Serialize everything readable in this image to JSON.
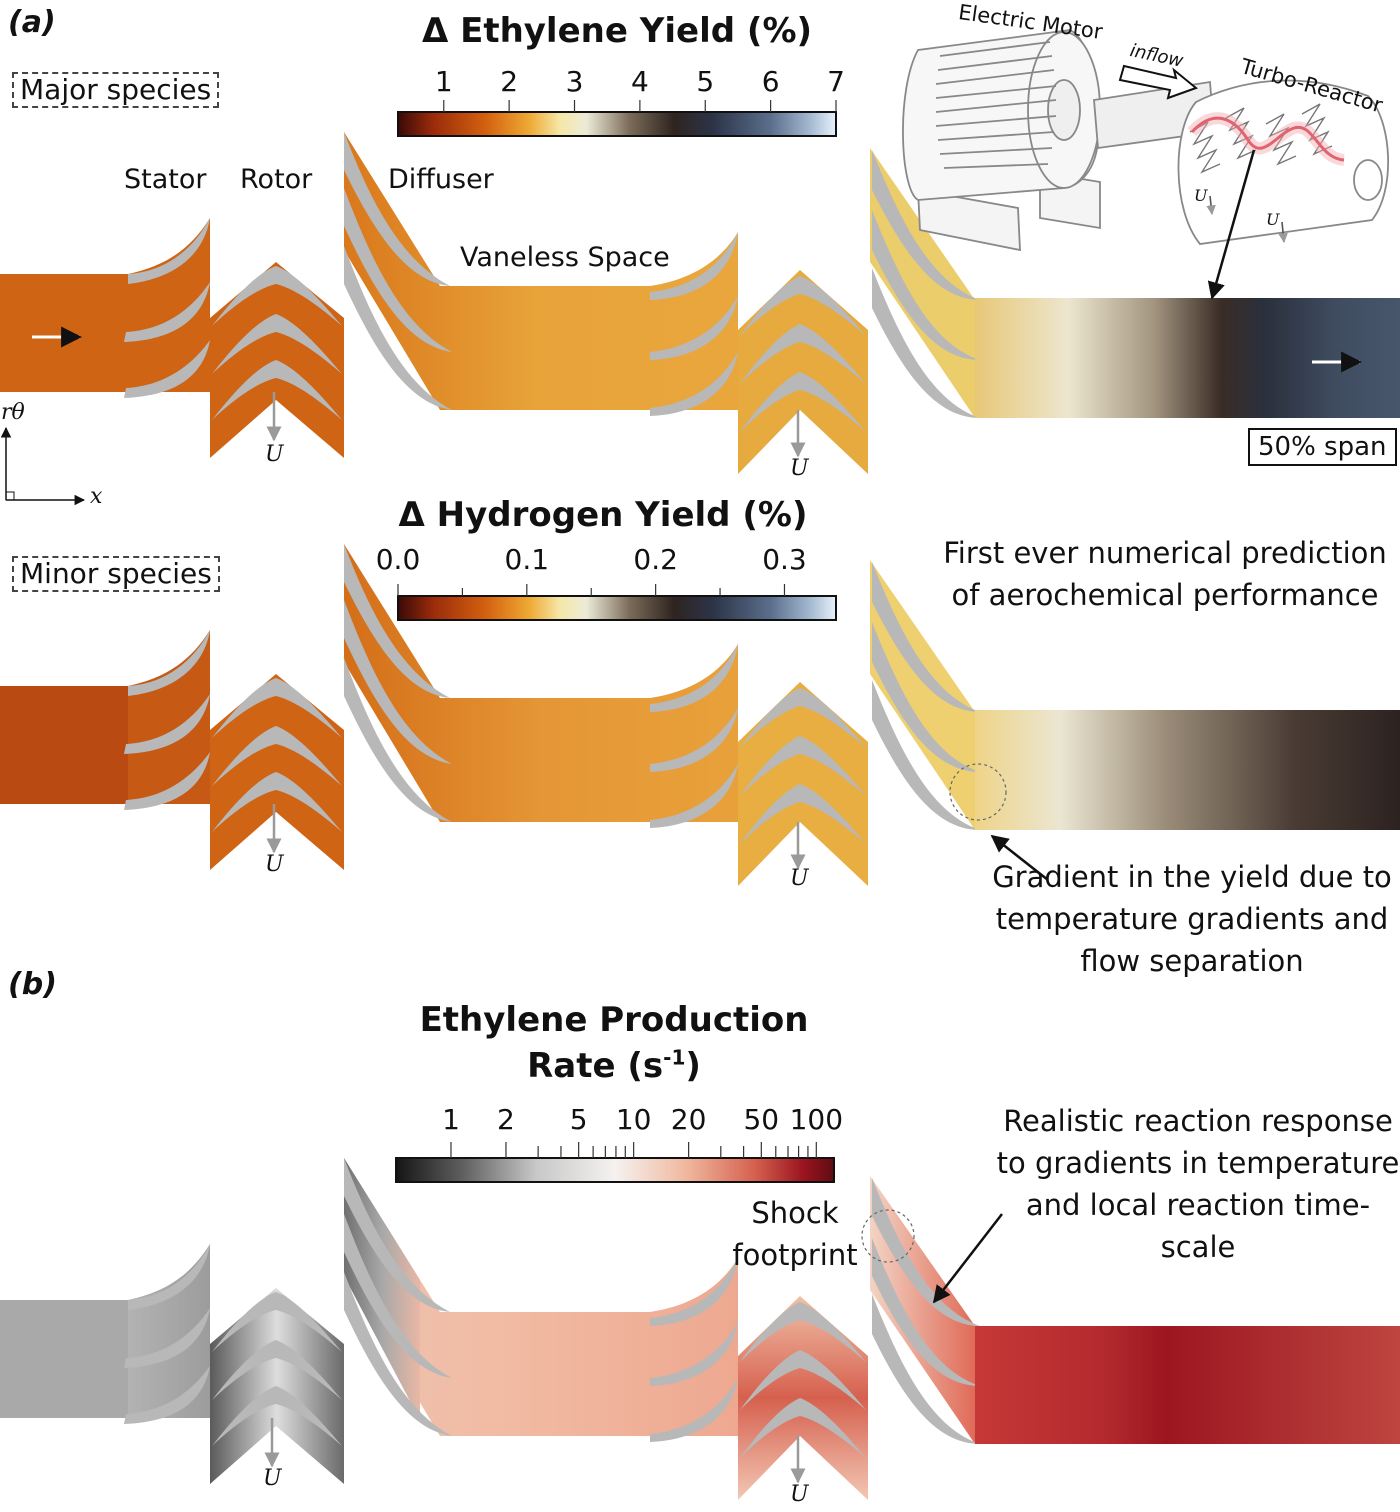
{
  "panel_a": {
    "letter": "a",
    "ethylene_colorbar": {
      "title": "Δ Ethylene Yield (%)",
      "ticks": [
        "1",
        "2",
        "3",
        "4",
        "5",
        "6",
        "7"
      ],
      "range": [
        0.3,
        7
      ]
    },
    "hydrogen_colorbar": {
      "title": "Δ Hydrogen Yield (%)",
      "ticks": [
        "0.0",
        "0.1",
        "0.2",
        "0.3"
      ],
      "range": [
        0.0,
        0.34
      ]
    },
    "major_species_label": "Major species",
    "minor_species_label": "Minor species",
    "component_labels": {
      "stator": "Stator",
      "rotor": "Rotor",
      "diffuser": "Diffuser",
      "vaneless_space": "Vaneless Space"
    },
    "span_label": "50% span",
    "axes": {
      "vertical": "rθ",
      "horizontal": "x"
    },
    "rotor_velocity_label": "U",
    "inset": {
      "motor_label": "Electric Motor",
      "inflow_label": "inflow",
      "reactor_label": "Turbo-Reactor",
      "u_label": "U"
    },
    "note_prediction": "First ever numerical prediction of aerochemical performance",
    "note_gradient": "Gradient in the yield due to temperature gradients and flow separation"
  },
  "panel_b": {
    "letter": "b",
    "colorbar": {
      "title_line1": "Ethylene Production",
      "title_line2": "Rate (s",
      "title_sup": "-1",
      "title_close": ")",
      "ticks": [
        "1",
        "2",
        "5",
        "10",
        "20",
        "50",
        "100"
      ],
      "tick_values": [
        1,
        2,
        5,
        10,
        20,
        50,
        100
      ],
      "minor_tick_values": [
        3,
        4,
        6,
        7,
        8,
        9,
        30,
        40,
        60,
        70,
        80,
        90
      ],
      "range": [
        0.5,
        125
      ],
      "scale": "log"
    },
    "shock_label": "Shock footprint",
    "note_response": "Realistic reaction response to gradients in temperature and local reaction time-scale",
    "rotor_velocity_label": "U"
  },
  "colors": {
    "blade_grey": "#b8b8b8",
    "ethylene_map": [
      "#3a0a08",
      "#9a2b0a",
      "#d4600f",
      "#eeaa33",
      "#f5e7a8",
      "#ecebd8",
      "#c4bca8",
      "#7a6a58",
      "#2f2420",
      "#2c3448",
      "#5a6e8c",
      "#a3b8d0",
      "#e7f1fb"
    ],
    "production_map": [
      "#151515",
      "#5e5e5e",
      "#c8c8c8",
      "#f5f2f0",
      "#f0b9a0",
      "#d5604e",
      "#9b1420",
      "#5e0c12"
    ]
  }
}
